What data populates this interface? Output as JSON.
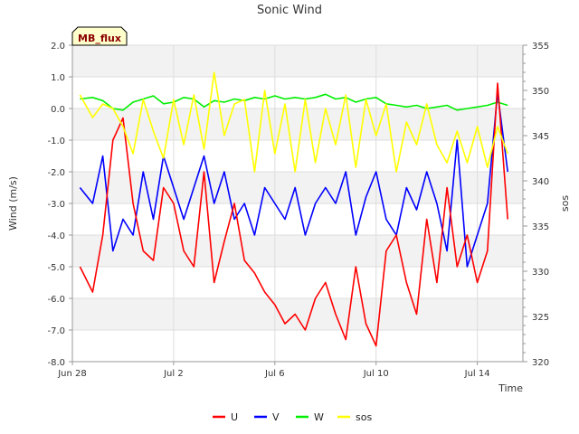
{
  "chart_data": {
    "type": "line",
    "title": "Sonic Wind",
    "badge": "MB_flux",
    "xlabel": "Time",
    "ylabel": "Wind (m/s)",
    "y2label": "sos",
    "x_ticks": [
      {
        "day": 0,
        "label": "Jun 28"
      },
      {
        "day": 4,
        "label": "Jul 2"
      },
      {
        "day": 8,
        "label": "Jul 6"
      },
      {
        "day": 12,
        "label": "Jul 10"
      },
      {
        "day": 16,
        "label": "Jul 14"
      }
    ],
    "xlim": [
      0,
      17.8
    ],
    "ylim": [
      -8.0,
      2.0
    ],
    "y_ticks": [
      {
        "value": 2.0,
        "label": "2.0"
      },
      {
        "value": 1.0,
        "label": "1.0"
      },
      {
        "value": 0.0,
        "label": "0.0"
      },
      {
        "value": -1.0,
        "label": "-1.0"
      },
      {
        "value": -2.0,
        "label": "-2.0"
      },
      {
        "value": -3.0,
        "label": "-3.0"
      },
      {
        "value": -4.0,
        "label": "-4.0"
      },
      {
        "value": -5.0,
        "label": "-5.0"
      },
      {
        "value": -6.0,
        "label": "-6.0"
      },
      {
        "value": -7.0,
        "label": "-7.0"
      },
      {
        "value": -8.0,
        "label": "-8.0"
      }
    ],
    "y2lim": [
      320,
      355
    ],
    "y2_ticks": [
      {
        "value": 355,
        "label": "355"
      },
      {
        "value": 350,
        "label": "350"
      },
      {
        "value": 345,
        "label": "345"
      },
      {
        "value": 340,
        "label": "340"
      },
      {
        "value": 335,
        "label": "335"
      },
      {
        "value": 330,
        "label": "330"
      },
      {
        "value": 325,
        "label": "325"
      },
      {
        "value": 320,
        "label": "320"
      }
    ],
    "grid": true,
    "legend_position": "bottom-center",
    "series": [
      {
        "name": "U",
        "color": "#ff0000",
        "axis": "left",
        "x": [
          0.3,
          0.8,
          1.2,
          1.6,
          2.0,
          2.4,
          2.8,
          3.2,
          3.6,
          4.0,
          4.4,
          4.8,
          5.2,
          5.6,
          6.0,
          6.4,
          6.8,
          7.2,
          7.6,
          8.0,
          8.4,
          8.8,
          9.2,
          9.6,
          10.0,
          10.4,
          10.8,
          11.2,
          11.6,
          12.0,
          12.4,
          12.8,
          13.2,
          13.6,
          14.0,
          14.4,
          14.8,
          15.2,
          15.6,
          16.0,
          16.4,
          16.8,
          17.2
        ],
        "values": [
          -5.0,
          -5.8,
          -4.0,
          -1.0,
          -0.3,
          -3.0,
          -4.5,
          -4.8,
          -2.5,
          -3.0,
          -4.5,
          -5.0,
          -2.0,
          -5.5,
          -4.2,
          -3.0,
          -4.8,
          -5.2,
          -5.8,
          -6.2,
          -6.8,
          -6.5,
          -7.0,
          -6.0,
          -5.5,
          -6.5,
          -7.3,
          -5.0,
          -6.8,
          -7.5,
          -4.5,
          -4.0,
          -5.5,
          -6.5,
          -3.5,
          -5.5,
          -2.5,
          -5.0,
          -4.0,
          -5.5,
          -4.5,
          0.8,
          -3.5
        ]
      },
      {
        "name": "V",
        "color": "#0000ff",
        "axis": "left",
        "x": [
          0.3,
          0.8,
          1.2,
          1.6,
          2.0,
          2.4,
          2.8,
          3.2,
          3.6,
          4.0,
          4.4,
          4.8,
          5.2,
          5.6,
          6.0,
          6.4,
          6.8,
          7.2,
          7.6,
          8.0,
          8.4,
          8.8,
          9.2,
          9.6,
          10.0,
          10.4,
          10.8,
          11.2,
          11.6,
          12.0,
          12.4,
          12.8,
          13.2,
          13.6,
          14.0,
          14.4,
          14.8,
          15.2,
          15.6,
          16.0,
          16.4,
          16.8,
          17.2
        ],
        "values": [
          -2.5,
          -3.0,
          -1.5,
          -4.5,
          -3.5,
          -4.0,
          -2.0,
          -3.5,
          -1.5,
          -2.5,
          -3.5,
          -2.5,
          -1.5,
          -3.0,
          -2.0,
          -3.5,
          -3.0,
          -4.0,
          -2.5,
          -3.0,
          -3.5,
          -2.5,
          -4.0,
          -3.0,
          -2.5,
          -3.0,
          -2.0,
          -4.0,
          -2.8,
          -2.0,
          -3.5,
          -4.0,
          -2.5,
          -3.2,
          -2.0,
          -3.0,
          -4.5,
          -1.0,
          -5.0,
          -4.0,
          -3.0,
          0.5,
          -2.0
        ]
      },
      {
        "name": "W",
        "color": "#00ee00",
        "axis": "left",
        "x": [
          0.3,
          0.8,
          1.2,
          1.6,
          2.0,
          2.4,
          2.8,
          3.2,
          3.6,
          4.0,
          4.4,
          4.8,
          5.2,
          5.6,
          6.0,
          6.4,
          6.8,
          7.2,
          7.6,
          8.0,
          8.4,
          8.8,
          9.2,
          9.6,
          10.0,
          10.4,
          10.8,
          11.2,
          11.6,
          12.0,
          12.4,
          12.8,
          13.2,
          13.6,
          14.0,
          14.4,
          14.8,
          15.2,
          15.6,
          16.0,
          16.4,
          16.8,
          17.2
        ],
        "values": [
          0.3,
          0.35,
          0.25,
          0.0,
          -0.05,
          0.2,
          0.3,
          0.4,
          0.15,
          0.2,
          0.35,
          0.3,
          0.05,
          0.25,
          0.2,
          0.3,
          0.25,
          0.35,
          0.3,
          0.4,
          0.3,
          0.35,
          0.3,
          0.35,
          0.45,
          0.3,
          0.35,
          0.2,
          0.3,
          0.35,
          0.15,
          0.1,
          0.05,
          0.1,
          0.0,
          0.05,
          0.1,
          -0.05,
          0.0,
          0.05,
          0.1,
          0.2,
          0.1
        ]
      },
      {
        "name": "sos",
        "color": "#ffff00",
        "axis": "right",
        "x": [
          0.3,
          0.8,
          1.2,
          1.6,
          2.0,
          2.4,
          2.8,
          3.2,
          3.6,
          4.0,
          4.4,
          4.8,
          5.2,
          5.6,
          6.0,
          6.4,
          6.8,
          7.2,
          7.6,
          8.0,
          8.4,
          8.8,
          9.2,
          9.6,
          10.0,
          10.4,
          10.8,
          11.2,
          11.6,
          12.0,
          12.4,
          12.8,
          13.2,
          13.6,
          14.0,
          14.4,
          14.8,
          15.2,
          15.6,
          16.0,
          16.4,
          16.8,
          17.2
        ],
        "values": [
          349.5,
          347.0,
          348.5,
          348.0,
          346.0,
          343.0,
          349.0,
          345.5,
          342.5,
          349.0,
          344.0,
          349.5,
          343.5,
          352.0,
          345.0,
          348.5,
          349.0,
          341.0,
          350.0,
          343.0,
          348.5,
          341.0,
          349.0,
          342.0,
          348.0,
          344.0,
          349.5,
          341.5,
          349.0,
          345.0,
          348.5,
          341.0,
          346.5,
          344.0,
          348.5,
          344.0,
          342.0,
          345.5,
          342.0,
          346.0,
          341.5,
          346.0,
          343.0
        ]
      }
    ]
  }
}
